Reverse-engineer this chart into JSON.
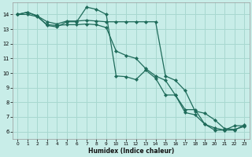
{
  "xlabel": "Humidex (Indice chaleur)",
  "bg_color": "#c8ede8",
  "grid_color": "#a8d8d0",
  "line_color": "#1e6b5a",
  "xlim": [
    -0.5,
    23.5
  ],
  "ylim": [
    5.5,
    14.8
  ],
  "yticks": [
    6,
    7,
    8,
    9,
    10,
    11,
    12,
    13,
    14
  ],
  "xticks": [
    0,
    1,
    2,
    3,
    4,
    5,
    6,
    7,
    8,
    9,
    10,
    11,
    12,
    13,
    14,
    15,
    16,
    17,
    18,
    19,
    20,
    21,
    22,
    23
  ],
  "series1_x": [
    0,
    1,
    2,
    3,
    4,
    5,
    6,
    7,
    8,
    9,
    10,
    11,
    12,
    13,
    14,
    15,
    16,
    17,
    18,
    19,
    20,
    21,
    22,
    23
  ],
  "series1_y": [
    14.0,
    14.15,
    13.9,
    13.25,
    13.15,
    13.5,
    13.5,
    14.5,
    14.35,
    14.0,
    9.8,
    9.75,
    9.55,
    10.2,
    9.65,
    8.5,
    8.5,
    7.3,
    7.15,
    6.5,
    6.1,
    6.1,
    6.4,
    6.4
  ],
  "series2_x": [
    0,
    1,
    2,
    3,
    4,
    5,
    6,
    7,
    8,
    9,
    10,
    11,
    12,
    13,
    14,
    15,
    16,
    17,
    18,
    19,
    20,
    21,
    22,
    23
  ],
  "series2_y": [
    14.0,
    14.15,
    13.9,
    13.5,
    13.35,
    13.55,
    13.55,
    13.6,
    13.55,
    13.5,
    13.5,
    13.5,
    13.5,
    13.5,
    13.5,
    9.8,
    9.5,
    8.8,
    7.4,
    7.25,
    6.8,
    6.2,
    6.15,
    6.35
  ],
  "series3_x": [
    0,
    1,
    2,
    3,
    4,
    5,
    6,
    7,
    8,
    9,
    10,
    11,
    12,
    13,
    14,
    15,
    16,
    17,
    18,
    19,
    20,
    21,
    22,
    23
  ],
  "series3_y": [
    14.0,
    14.0,
    13.85,
    13.3,
    13.25,
    13.3,
    13.3,
    13.35,
    13.3,
    13.1,
    11.5,
    11.2,
    11.0,
    10.3,
    9.8,
    9.5,
    8.5,
    7.5,
    7.5,
    6.5,
    6.25,
    6.1,
    6.1,
    6.45
  ]
}
